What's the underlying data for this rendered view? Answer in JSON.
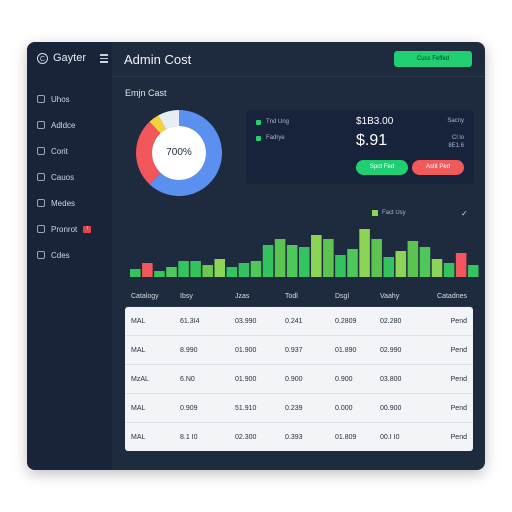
{
  "app": {
    "name": "Gayter"
  },
  "sidebar": {
    "items": [
      {
        "label": "Uhos",
        "icon": "home-icon"
      },
      {
        "label": "Adldce",
        "icon": "table-icon"
      },
      {
        "label": "Corit",
        "icon": "chart-icon"
      },
      {
        "label": "Cauos",
        "icon": "settings-icon"
      },
      {
        "label": "Medes",
        "icon": "media-icon"
      },
      {
        "label": "Pronrot",
        "icon": "report-icon",
        "badge": "!"
      },
      {
        "label": "Cdes",
        "icon": "code-icon"
      }
    ]
  },
  "header": {
    "title": "Admin Cost",
    "action_label": "Cuss Feffed"
  },
  "section": {
    "title": "Emjn Cast"
  },
  "donut": {
    "center_label": "700%",
    "slices": [
      {
        "value": 62,
        "color": "#5b8ff0"
      },
      {
        "value": 26,
        "color": "#f0565a"
      },
      {
        "value": 4,
        "color": "#f5d23a"
      },
      {
        "value": 8,
        "color": "#e8ecf3"
      }
    ]
  },
  "stats": {
    "legend": [
      "Tnd Ung",
      "Fadrye"
    ],
    "top_value": "$1B3.00",
    "main_value": "$.91",
    "side_label": "Sacny",
    "side_values": [
      "Cl lo",
      "8E1.6"
    ],
    "green_button": "Spot Fed",
    "red_button": "Astit Ped"
  },
  "bar_chart": {
    "legend": "Fact Usy",
    "check_symbol": "✓"
  },
  "chart_data": {
    "type": "bar",
    "values": [
      4,
      7,
      3,
      5,
      8,
      8,
      6,
      9,
      5,
      7,
      8,
      16,
      19,
      16,
      15,
      21,
      19,
      11,
      14,
      24,
      19,
      10,
      13,
      18,
      15,
      9,
      7,
      12,
      6
    ],
    "colors": [
      "#33c35f",
      "#f0565a",
      "#33c35f",
      "#4fc85a",
      "#33c35f",
      "#33c35f",
      "#6cc84f",
      "#8bd455",
      "#33c35f",
      "#33c35f",
      "#4fc85a",
      "#33c35f",
      "#5cc450",
      "#4fc85a",
      "#33c35f",
      "#8bd455",
      "#5cc450",
      "#33c35f",
      "#4fc85a",
      "#8bd455",
      "#5cc450",
      "#33c35f",
      "#8bd455",
      "#5cc450",
      "#4fc85a",
      "#8bd455",
      "#33c35f",
      "#f0565a",
      "#33c35f"
    ],
    "ylim": [
      0,
      24
    ]
  },
  "table": {
    "headers": [
      "Catalogy",
      "Ibsy",
      "Jzas",
      "Todl",
      "Dsgl",
      "Vaahy",
      "Catadnes"
    ],
    "rows": [
      [
        "MAL",
        "61.3I4",
        "03.990",
        "0.241",
        "0.2809",
        "02.280",
        "Pend"
      ],
      [
        "MAL",
        "8.990",
        "01.900",
        "0.937",
        "01.890",
        "02.990",
        "Pend"
      ],
      [
        "MzAL",
        "6.N0",
        "01.900",
        "0.900",
        "0.900",
        "03.800",
        "Pend"
      ],
      [
        "MAL",
        "0.909",
        "51.910",
        "0.239",
        "0.000",
        "00.900",
        "Pend"
      ],
      [
        "MAL",
        "8.1 I0",
        "02.300",
        "0.393",
        "01.809",
        "00.I I0",
        "Pend"
      ]
    ]
  }
}
